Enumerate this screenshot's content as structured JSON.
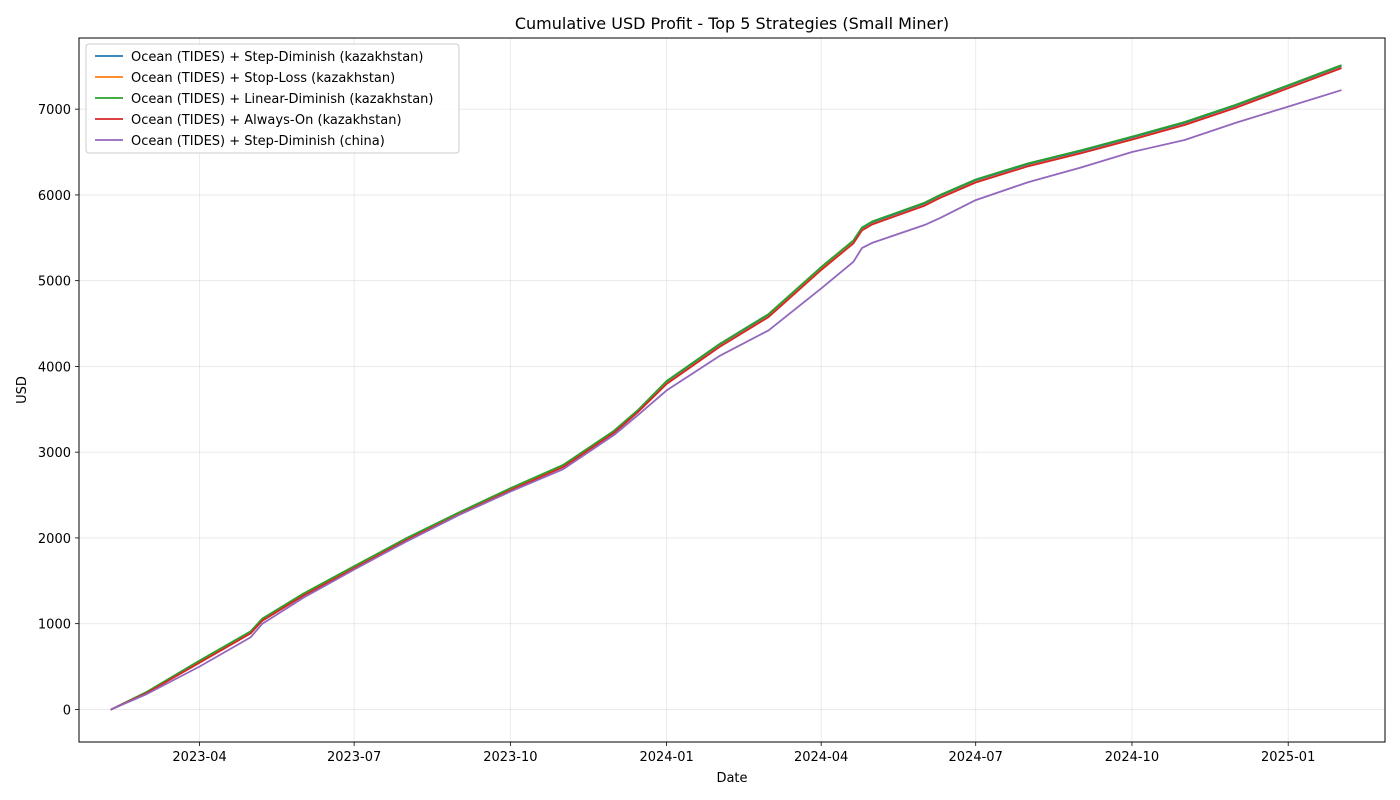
{
  "chart_data": {
    "type": "line",
    "title": "Cumulative USD Profit - Top 5 Strategies (Small Miner)",
    "xlabel": "Date",
    "ylabel": "USD",
    "x_range": [
      "2023-01-20",
      "2025-02-27"
    ],
    "ylim": [
      -380,
      7830
    ],
    "grid": true,
    "legend_position": "top-left",
    "x_ticks": [
      "2023-04",
      "2023-07",
      "2023-10",
      "2024-01",
      "2024-04",
      "2024-07",
      "2024-10",
      "2025-01"
    ],
    "y_ticks": [
      0,
      1000,
      2000,
      3000,
      4000,
      5000,
      6000,
      7000
    ],
    "x": [
      "2023-02-08",
      "2023-03-01",
      "2023-04-01",
      "2023-05-01",
      "2023-05-08",
      "2023-06-01",
      "2023-07-01",
      "2023-08-01",
      "2023-09-01",
      "2023-10-01",
      "2023-11-01",
      "2023-12-01",
      "2023-12-15",
      "2024-01-01",
      "2024-02-01",
      "2024-03-01",
      "2024-04-01",
      "2024-04-20",
      "2024-04-25",
      "2024-05-01",
      "2024-06-01",
      "2024-06-10",
      "2024-07-01",
      "2024-08-01",
      "2024-09-01",
      "2024-10-01",
      "2024-11-01",
      "2024-12-01",
      "2025-01-01",
      "2025-02-01"
    ],
    "series": [
      {
        "name": "Ocean (TIDES) + Step-Diminish (kazakhstan)",
        "color": "#1f77b4",
        "values": [
          0,
          200,
          560,
          900,
          1050,
          1340,
          1660,
          1990,
          2290,
          2570,
          2840,
          3240,
          3480,
          3820,
          4250,
          4600,
          5150,
          5460,
          5610,
          5680,
          5900,
          5990,
          6170,
          6360,
          6510,
          6670,
          6840,
          7040,
          7270,
          7500
        ]
      },
      {
        "name": "Ocean (TIDES) + Stop-Loss (kazakhstan)",
        "color": "#ff7f0e",
        "values": [
          0,
          195,
          550,
          890,
          1040,
          1330,
          1650,
          1980,
          2280,
          2560,
          2830,
          3230,
          3470,
          3800,
          4230,
          4580,
          5130,
          5440,
          5590,
          5660,
          5880,
          5970,
          6150,
          6340,
          6490,
          6650,
          6820,
          7020,
          7250,
          7480
        ]
      },
      {
        "name": "Ocean (TIDES) + Linear-Diminish (kazakhstan)",
        "color": "#2ca02c",
        "values": [
          0,
          205,
          570,
          910,
          1060,
          1350,
          1670,
          2000,
          2300,
          2580,
          2850,
          3250,
          3490,
          3830,
          4260,
          4610,
          5160,
          5470,
          5620,
          5690,
          5910,
          6000,
          6180,
          6370,
          6520,
          6680,
          6850,
          7050,
          7280,
          7510
        ]
      },
      {
        "name": "Ocean (TIDES) + Always-On (kazakhstan)",
        "color": "#d62728",
        "values": [
          0,
          193,
          545,
          885,
          1035,
          1325,
          1645,
          1975,
          2275,
          2555,
          2825,
          3225,
          3465,
          3795,
          4225,
          4575,
          5125,
          5435,
          5585,
          5655,
          5875,
          5965,
          6145,
          6335,
          6485,
          6645,
          6815,
          7015,
          7245,
          7475
        ]
      },
      {
        "name": "Ocean (TIDES) + Step-Diminish (china)",
        "color": "#9467bd",
        "values": [
          0,
          180,
          500,
          840,
          1000,
          1300,
          1630,
          1960,
          2270,
          2540,
          2800,
          3200,
          3430,
          3720,
          4120,
          4420,
          4910,
          5220,
          5380,
          5440,
          5650,
          5730,
          5940,
          6150,
          6320,
          6500,
          6640,
          6840,
          7030,
          7220
        ]
      }
    ]
  }
}
